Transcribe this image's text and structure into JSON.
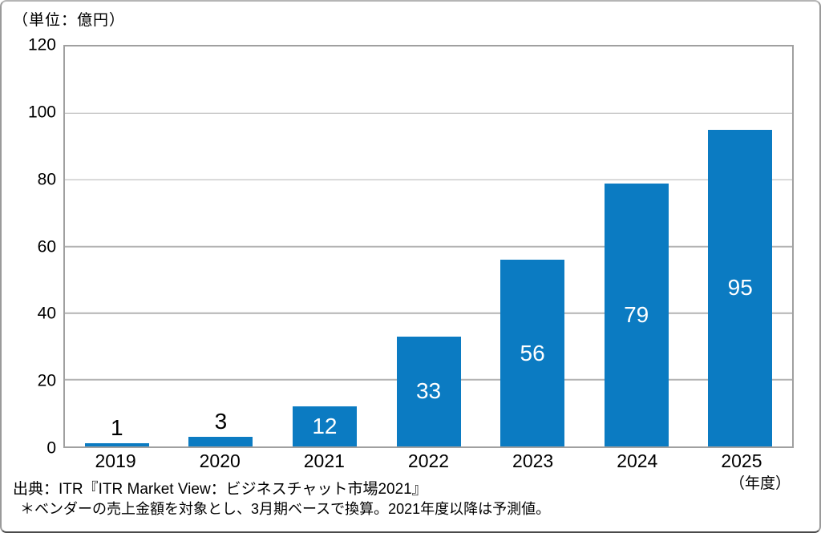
{
  "chart_data": {
    "type": "bar",
    "title": "",
    "unit_label": "（単位：億円）",
    "xlabel": "（年度）",
    "ylabel": "",
    "categories": [
      "2019",
      "2020",
      "2021",
      "2022",
      "2023",
      "2024",
      "2025"
    ],
    "values": [
      1,
      3,
      12,
      33,
      56,
      79,
      95
    ],
    "ylim": [
      0,
      120
    ],
    "yticks": [
      0,
      20,
      40,
      60,
      80,
      100,
      120
    ],
    "grid": true,
    "legend": false,
    "bar_color": "#0b7bc2",
    "inside_label_color": "#ffffff",
    "outside_label_color": "#000000",
    "gridline_color": "#b3b3b3",
    "axis_border_color": "#a0a0a0"
  },
  "source": {
    "line1": "出典：ITR『ITR Market View：ビジネスチャット市場2021』",
    "line2": "＊ベンダーの売上金額を対象とし、3月期ベースで換算。2021年度以降は予測値。"
  }
}
